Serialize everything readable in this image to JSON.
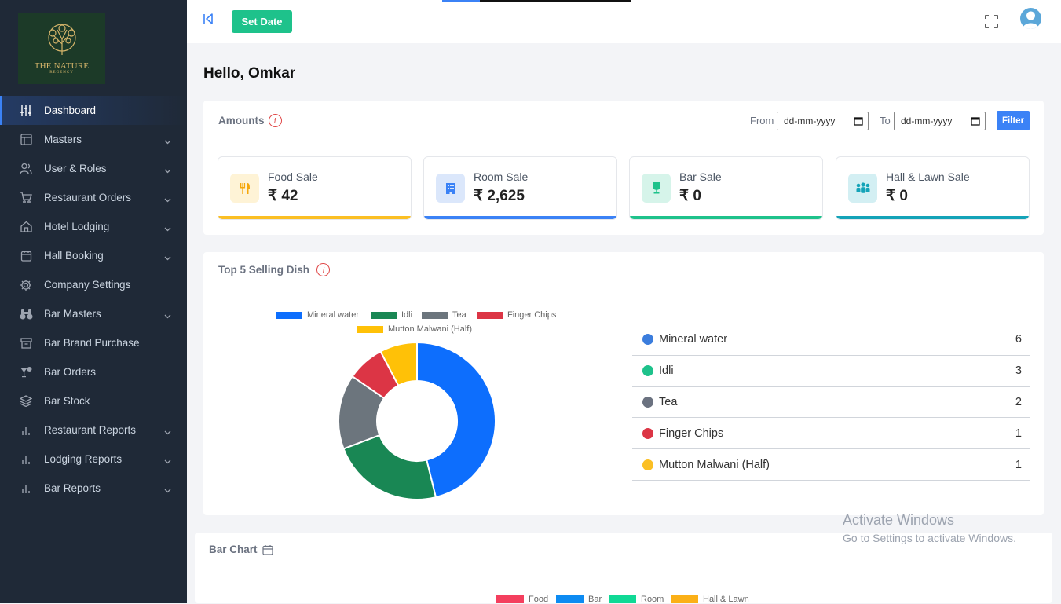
{
  "sidebar": {
    "logo_line1": "THE NATURE",
    "logo_line2": "REGENCY",
    "items": [
      {
        "label": "Dashboard",
        "icon": "sliders-icon",
        "active": true
      },
      {
        "label": "Masters",
        "icon": "layout-icon",
        "chevron": true
      },
      {
        "label": "User & Roles",
        "icon": "users-icon",
        "chevron": true
      },
      {
        "label": "Restaurant Orders",
        "icon": "cart-icon",
        "chevron": true
      },
      {
        "label": "Hotel Lodging",
        "icon": "home-icon",
        "chevron": true
      },
      {
        "label": "Hall Booking",
        "icon": "calendar-icon",
        "chevron": true
      },
      {
        "label": "Company Settings",
        "icon": "gear-icon"
      },
      {
        "label": "Bar Masters",
        "icon": "binoculars-icon",
        "chevron": true
      },
      {
        "label": "Bar Brand Purchase",
        "icon": "archive-icon"
      },
      {
        "label": "Bar Orders",
        "icon": "cocktail-icon"
      },
      {
        "label": "Bar Stock",
        "icon": "layers-icon"
      },
      {
        "label": "Restaurant Reports",
        "icon": "bar-chart-icon",
        "chevron": true
      },
      {
        "label": "Lodging Reports",
        "icon": "bar-chart-icon",
        "chevron": true
      },
      {
        "label": "Bar Reports",
        "icon": "bar-chart-icon",
        "chevron": true
      }
    ]
  },
  "topbar": {
    "set_date_label": "Set Date"
  },
  "greeting": "Hello, Omkar",
  "amounts": {
    "title": "Amounts",
    "info": "i",
    "from_label": "From",
    "to_label": "To",
    "from_placeholder": "dd-mm-yyyy",
    "to_placeholder": "dd-mm-yyyy",
    "filter_label": "Filter",
    "stats": [
      {
        "label": "Food Sale",
        "value": "₹ 42",
        "icon": "utensils-icon",
        "color": "#fbbf24",
        "bg": "#fef3d6"
      },
      {
        "label": "Room Sale",
        "value": "₹ 2,625",
        "icon": "building-icon",
        "color": "#3b82f6",
        "bg": "#dbe7fb"
      },
      {
        "label": "Bar Sale",
        "value": "₹ 0",
        "icon": "wine-glass-icon",
        "color": "#1ec28b",
        "bg": "#d6f4ea"
      },
      {
        "label": "Hall & Lawn Sale",
        "value": "₹ 0",
        "icon": "people-icon",
        "color": "#14a3b8",
        "bg": "#d3eff3"
      }
    ]
  },
  "top5": {
    "title": "Top 5 Selling Dish",
    "info": "i",
    "items": [
      {
        "name": "Mineral water",
        "count": "6",
        "dot": "#3b7ddd"
      },
      {
        "name": "Idli",
        "count": "3",
        "dot": "#1ec28b"
      },
      {
        "name": "Tea",
        "count": "2",
        "dot": "#6b7280"
      },
      {
        "name": "Finger Chips",
        "count": "1",
        "dot": "#dc3545"
      },
      {
        "name": "Mutton Malwani (Half)",
        "count": "1",
        "dot": "#fbbf24"
      }
    ]
  },
  "chart_data": {
    "type": "pie",
    "categories": [
      "Mineral water",
      "Idli",
      "Tea",
      "Finger Chips",
      "Mutton Malwani (Half)"
    ],
    "values": [
      6,
      3,
      2,
      1,
      1
    ],
    "colors": [
      "#0d6efd",
      "#198754",
      "#6c757d",
      "#dc3545",
      "#ffc107"
    ],
    "donut": true,
    "legend": "top"
  },
  "bar_chart": {
    "title": "Bar Chart",
    "legend": [
      {
        "label": "Food",
        "color": "#f43f5e"
      },
      {
        "label": "Bar",
        "color": "#0d8bf2"
      },
      {
        "label": "Room",
        "color": "#10d995"
      },
      {
        "label": "Hall & Lawn",
        "color": "#fbb017"
      }
    ]
  },
  "watermark": {
    "line1": "Activate Windows",
    "line2": "Go to Settings to activate Windows."
  }
}
